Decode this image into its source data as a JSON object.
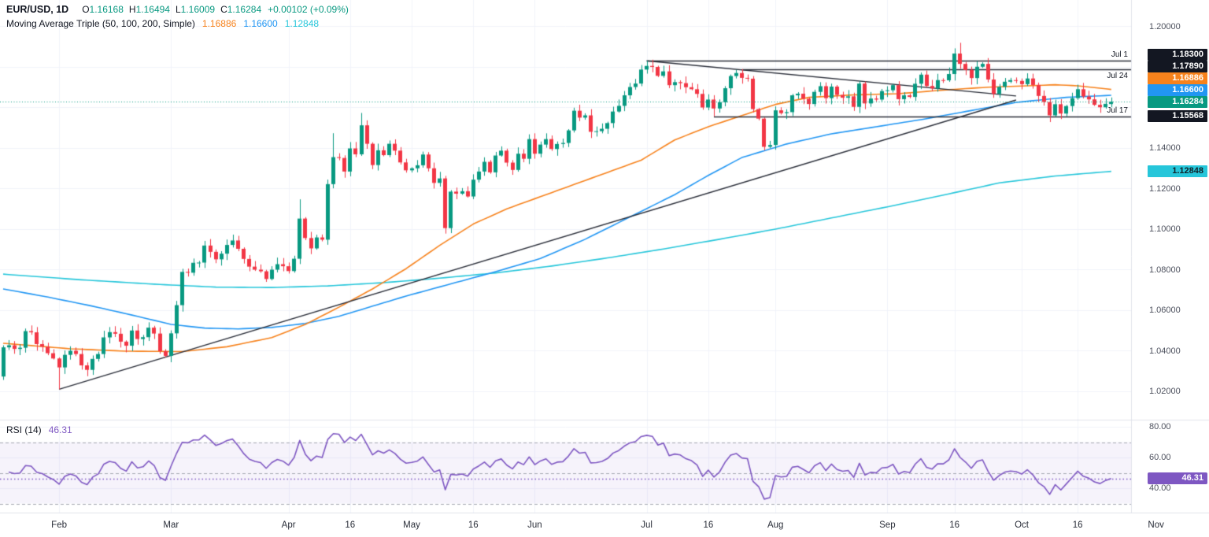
{
  "header": {
    "symbol": "EUR/USD, 1D",
    "ohlc": {
      "o_label": "O",
      "o": "1.16168",
      "h_label": "H",
      "h": "1.16494",
      "l_label": "L",
      "l": "1.16009",
      "c_label": "C",
      "c": "1.16284",
      "change": "+0.00102 (+0.09%)"
    },
    "ma_label": "Moving Average Triple (50, 100, 200, Simple)",
    "ma_values": {
      "ma50": "1.16886",
      "ma100": "1.16600",
      "ma200": "1.12848"
    }
  },
  "rsi_panel": {
    "label": "RSI (14)",
    "value": "46.31",
    "current": 46.31,
    "upper_band": 70,
    "middle_band": 50,
    "lower_band": 30,
    "ticks": [
      {
        "label": "80.00",
        "value": 80
      },
      {
        "label": "60.00",
        "value": 60
      },
      {
        "label": "40.00",
        "value": 40
      }
    ],
    "badge": "46.31"
  },
  "price_axis": {
    "ticks": [
      {
        "label": "1.20000",
        "price": 1.2
      },
      {
        "label": "1.14000",
        "price": 1.14
      },
      {
        "label": "1.12000",
        "price": 1.12
      },
      {
        "label": "1.10000",
        "price": 1.1
      },
      {
        "label": "1.08000",
        "price": 1.08
      },
      {
        "label": "1.06000",
        "price": 1.06
      },
      {
        "label": "1.04000",
        "price": 1.04
      },
      {
        "label": "1.02000",
        "price": 1.02
      }
    ],
    "badges": [
      {
        "label": "1.18300",
        "price": 1.183,
        "bg": "#131722",
        "fg": "#FFFFFF"
      },
      {
        "label": "1.17890",
        "price": 1.1789,
        "bg": "#131722",
        "fg": "#FFFFFF"
      },
      {
        "label": "1.16886",
        "price": 1.16886,
        "bg": "#F7821C",
        "fg": "#FFFFFF"
      },
      {
        "label": "1.16600",
        "price": 1.166,
        "bg": "#2196F3",
        "fg": "#FFFFFF"
      },
      {
        "label": "1.16284",
        "price": 1.16284,
        "bg": "#089981",
        "fg": "#FFFFFF"
      },
      {
        "label": "1.15568",
        "price": 1.15568,
        "bg": "#131722",
        "fg": "#FFFFFF"
      },
      {
        "label": "1.12848",
        "price": 1.12848,
        "bg": "#26C6DA",
        "fg": "#0f2229"
      }
    ]
  },
  "time_axis": {
    "labels": [
      {
        "label": "Feb",
        "day": 10
      },
      {
        "label": "Mar",
        "day": 30
      },
      {
        "label": "Apr",
        "day": 51
      },
      {
        "label": "16",
        "day": 62
      },
      {
        "label": "May",
        "day": 73
      },
      {
        "label": "16",
        "day": 84
      },
      {
        "label": "Jun",
        "day": 95
      },
      {
        "label": "Jul",
        "day": 115
      },
      {
        "label": "16",
        "day": 126
      },
      {
        "label": "Aug",
        "day": 138
      },
      {
        "label": "Sep",
        "day": 158
      },
      {
        "label": "16",
        "day": 170
      },
      {
        "label": "Oct",
        "day": 182
      },
      {
        "label": "16",
        "day": 192
      },
      {
        "label": "Nov",
        "day": 206
      }
    ]
  },
  "annotations": {
    "date_labels": [
      {
        "text": "Jul 1",
        "price": 1.183,
        "position": "above"
      },
      {
        "text": "Jul 24",
        "price": 1.1789,
        "position": "below"
      },
      {
        "text": "Jul 17",
        "price": 1.15568,
        "position": "above"
      }
    ],
    "hlines": [
      {
        "price": 1.183,
        "from_day": 115
      },
      {
        "price": 1.1789,
        "from_day": 132
      },
      {
        "price": 1.15568,
        "from_day": 127
      }
    ],
    "trendlines": [
      {
        "from_day": 10,
        "from_price": 1.021,
        "to_day": 181,
        "to_price": 1.1637
      },
      {
        "from_day": 115,
        "from_price": 1.183,
        "to_day": 181,
        "to_price": 1.1657
      }
    ],
    "current_price_line": 1.16284
  },
  "chart_data": {
    "type": "candlestick",
    "symbol": "EUR/USD",
    "timeframe": "1D",
    "title": "EUR/USD daily with Moving Average Triple (50, 100, 200, Simple) and RSI (14)",
    "x_range_labels": [
      "Feb",
      "Mar",
      "Apr",
      "May",
      "Jun",
      "Jul",
      "Aug",
      "Sep",
      "Oct",
      "Nov"
    ],
    "ylim": [
      1.01,
      1.205
    ],
    "rsi_period": 14,
    "closes": [
      1.0417,
      1.0427,
      1.0409,
      1.0415,
      1.0497,
      1.0491,
      1.0433,
      1.042,
      1.0388,
      1.0362,
      1.0318,
      1.038,
      1.04,
      1.0384,
      1.0328,
      1.0306,
      1.036,
      1.0384,
      1.0466,
      1.0492,
      1.0484,
      1.0445,
      1.0425,
      1.05,
      1.0458,
      1.0467,
      1.0514,
      1.0485,
      1.0398,
      1.0375,
      1.0486,
      1.0625,
      1.0789,
      1.0785,
      1.0834,
      1.0835,
      1.0919,
      1.0888,
      1.0851,
      1.0879,
      1.0922,
      1.0944,
      1.0903,
      1.0853,
      1.0815,
      1.08,
      1.0792,
      1.0754,
      1.08,
      1.0827,
      1.0817,
      1.0793,
      1.0854,
      1.1052,
      1.0956,
      1.0905,
      1.0959,
      1.0948,
      1.1222,
      1.1355,
      1.1351,
      1.1284,
      1.1398,
      1.1369,
      1.1512,
      1.1421,
      1.1316,
      1.1389,
      1.1365,
      1.1421,
      1.1387,
      1.1329,
      1.129,
      1.13,
      1.1315,
      1.1368,
      1.13,
      1.1228,
      1.125,
      1.1005,
      1.1185,
      1.1175,
      1.1187,
      1.1161,
      1.1244,
      1.1284,
      1.1332,
      1.128,
      1.1363,
      1.1387,
      1.1328,
      1.1292,
      1.1372,
      1.1347,
      1.1444,
      1.1372,
      1.1417,
      1.1444,
      1.1395,
      1.142,
      1.1425,
      1.1487,
      1.1584,
      1.155,
      1.1561,
      1.148,
      1.1483,
      1.1495,
      1.1523,
      1.158,
      1.1608,
      1.166,
      1.1701,
      1.1718,
      1.1787,
      1.1805,
      1.18,
      1.1756,
      1.1778,
      1.171,
      1.1725,
      1.172,
      1.17,
      1.169,
      1.1667,
      1.16,
      1.1639,
      1.1595,
      1.1626,
      1.1695,
      1.1755,
      1.177,
      1.1746,
      1.1742,
      1.1592,
      1.1545,
      1.1406,
      1.1415,
      1.1586,
      1.1572,
      1.1577,
      1.166,
      1.1668,
      1.1643,
      1.1617,
      1.1677,
      1.1705,
      1.1646,
      1.1703,
      1.1662,
      1.1648,
      1.1655,
      1.1603,
      1.1718,
      1.162,
      1.1644,
      1.1639,
      1.1681,
      1.1685,
      1.171,
      1.1641,
      1.166,
      1.1652,
      1.1717,
      1.1762,
      1.1706,
      1.1694,
      1.1735,
      1.1734,
      1.1765,
      1.1866,
      1.1815,
      1.1785,
      1.1745,
      1.1801,
      1.1815,
      1.1738,
      1.1667,
      1.1702,
      1.1727,
      1.1735,
      1.1731,
      1.1715,
      1.1743,
      1.1711,
      1.1657,
      1.1627,
      1.1561,
      1.1616,
      1.157,
      1.1607,
      1.1646,
      1.169,
      1.1654,
      1.164,
      1.1613,
      1.1601,
      1.1618,
      1.16284
    ],
    "overrides": {
      "10": {
        "low": 1.021
      },
      "53": {
        "high": 1.1147
      },
      "59": {
        "high": 1.1473
      },
      "64": {
        "high": 1.1573
      },
      "115": {
        "high": 1.183
      },
      "127": {
        "low": 1.1556
      },
      "132": {
        "high": 1.1789
      },
      "171": {
        "high": 1.1919
      },
      "198": {
        "open": 1.16168,
        "high": 1.16494,
        "low": 1.16009,
        "close": 1.16284
      }
    },
    "ma50_anchors": [
      [
        0,
        1.0437
      ],
      [
        12,
        1.041
      ],
      [
        22,
        1.0398
      ],
      [
        32,
        1.0396
      ],
      [
        40,
        1.042
      ],
      [
        48,
        1.0465
      ],
      [
        54,
        1.053
      ],
      [
        60,
        1.0615
      ],
      [
        66,
        1.0705
      ],
      [
        72,
        1.0805
      ],
      [
        78,
        1.092
      ],
      [
        84,
        1.1025
      ],
      [
        90,
        1.11
      ],
      [
        96,
        1.116
      ],
      [
        102,
        1.122
      ],
      [
        108,
        1.128
      ],
      [
        114,
        1.134
      ],
      [
        120,
        1.144
      ],
      [
        126,
        1.1505
      ],
      [
        132,
        1.156
      ],
      [
        138,
        1.1615
      ],
      [
        144,
        1.165
      ],
      [
        152,
        1.1662
      ],
      [
        160,
        1.1668
      ],
      [
        168,
        1.1686
      ],
      [
        176,
        1.17
      ],
      [
        182,
        1.1706
      ],
      [
        188,
        1.1712
      ],
      [
        192,
        1.1707
      ],
      [
        198,
        1.1689
      ]
    ],
    "ma100_anchors": [
      [
        0,
        1.0705
      ],
      [
        8,
        1.0665
      ],
      [
        16,
        1.062
      ],
      [
        24,
        1.057
      ],
      [
        30,
        1.053
      ],
      [
        36,
        1.0512
      ],
      [
        42,
        1.0508
      ],
      [
        48,
        1.0515
      ],
      [
        54,
        1.0535
      ],
      [
        60,
        1.057
      ],
      [
        66,
        1.062
      ],
      [
        72,
        1.067
      ],
      [
        80,
        1.073
      ],
      [
        88,
        1.079
      ],
      [
        96,
        1.0855
      ],
      [
        104,
        1.095
      ],
      [
        112,
        1.106
      ],
      [
        120,
        1.117
      ],
      [
        126,
        1.1265
      ],
      [
        132,
        1.1353
      ],
      [
        140,
        1.142
      ],
      [
        148,
        1.147
      ],
      [
        156,
        1.1505
      ],
      [
        164,
        1.154
      ],
      [
        172,
        1.158
      ],
      [
        181,
        1.1625
      ],
      [
        190,
        1.165
      ],
      [
        198,
        1.166
      ]
    ],
    "ma200_anchors": [
      [
        0,
        1.0778
      ],
      [
        14,
        1.075
      ],
      [
        28,
        1.0727
      ],
      [
        38,
        1.0714
      ],
      [
        48,
        1.0712
      ],
      [
        58,
        1.072
      ],
      [
        68,
        1.0736
      ],
      [
        78,
        1.0758
      ],
      [
        88,
        1.0784
      ],
      [
        98,
        1.0818
      ],
      [
        108,
        1.0858
      ],
      [
        118,
        1.0902
      ],
      [
        128,
        1.095
      ],
      [
        138,
        1.1
      ],
      [
        148,
        1.1055
      ],
      [
        158,
        1.111
      ],
      [
        168,
        1.1168
      ],
      [
        178,
        1.1228
      ],
      [
        188,
        1.1262
      ],
      [
        198,
        1.1285
      ]
    ],
    "colors": {
      "up": "#089981",
      "down": "#F23645",
      "ma50": "#F7821C",
      "ma100": "#2196F3",
      "ma200": "#26C6DA",
      "rsi": "#7E57C2",
      "rsi_band_fill": "rgba(126,87,194,0.07)",
      "trendline": "#2A2E39",
      "grid": "#F0F3FA",
      "band_dash": "#A5A8B1",
      "separator": "#E0E3EB",
      "text": "#131722"
    }
  }
}
